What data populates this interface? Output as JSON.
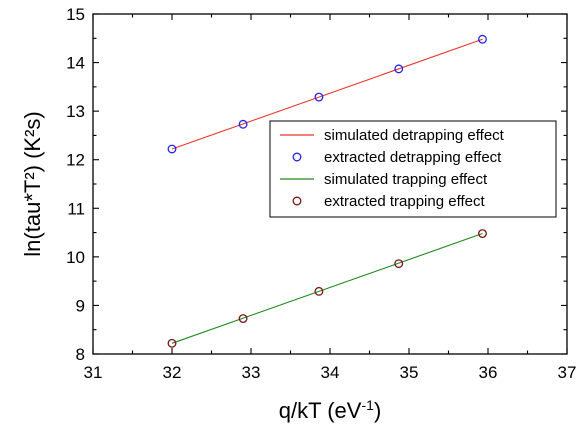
{
  "chart_data": {
    "type": "scatter",
    "xlabel": "q/kT (eV",
    "xlabel_sup": "-1",
    "xlabel_tail": ")",
    "ylabel": "ln(tau*T²) (K²s)",
    "xlim": [
      31,
      37
    ],
    "ylim": [
      8,
      15
    ],
    "xticks": [
      "31",
      "32",
      "33",
      "34",
      "35",
      "36",
      "37"
    ],
    "yticks": [
      "8",
      "9",
      "10",
      "11",
      "12",
      "13",
      "14",
      "15"
    ],
    "grid": false,
    "legend_position": "right",
    "series": [
      {
        "name": "simulated detrapping effect",
        "kind": "line",
        "color": "#e8372e",
        "x": [
          32.0,
          35.93
        ],
        "y": [
          12.22,
          14.48
        ]
      },
      {
        "name": "extracted detrapping effect",
        "kind": "markers",
        "marker": "open-circle",
        "color": "#2424e8",
        "x": [
          32.0,
          32.9,
          33.86,
          34.87,
          35.93
        ],
        "y": [
          12.22,
          12.73,
          13.29,
          13.87,
          14.48
        ]
      },
      {
        "name": "simulated trapping effect",
        "kind": "line",
        "color": "#1f8a1f",
        "x": [
          32.0,
          35.93
        ],
        "y": [
          8.22,
          10.48
        ]
      },
      {
        "name": "extracted trapping effect",
        "kind": "markers",
        "marker": "open-circle",
        "color": "#7a1515",
        "x": [
          32.0,
          32.9,
          33.86,
          34.87,
          35.93
        ],
        "y": [
          8.22,
          8.73,
          9.29,
          9.86,
          10.48
        ]
      }
    ]
  }
}
